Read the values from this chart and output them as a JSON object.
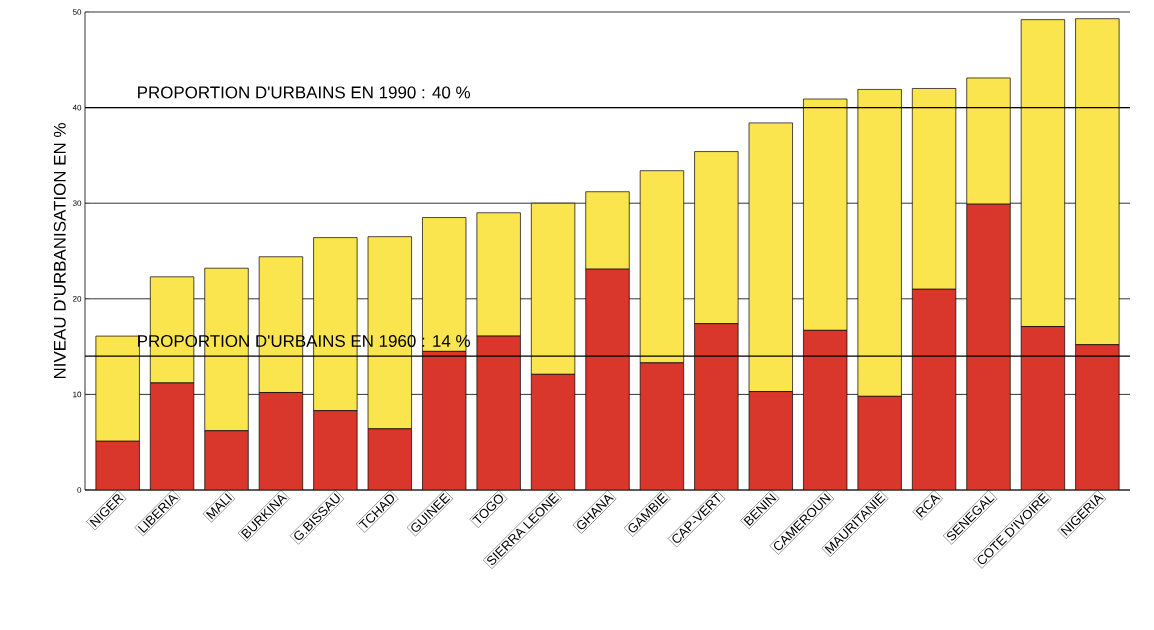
{
  "chart_data": {
    "type": "bar",
    "stacked": true,
    "ylabel": "NIVEAU D'URBANISATION EN      %",
    "categories": [
      "NIGER",
      "LIBERIA",
      "MALI",
      "BURKINA",
      "G.BISSAU",
      "TCHAD",
      "GUINEE",
      "TOGO",
      "SIERRA LEONE",
      "GHANA",
      "GAMBIE",
      "CAP-VERT",
      "BENIN",
      "CAMEROUN",
      "MAURITANIE",
      "RCA",
      "SENEGAL",
      "COTE D'IVOIRE",
      "NIGERIA"
    ],
    "series": [
      {
        "color": "#d9372b",
        "values": [
          5.1,
          11.2,
          6.2,
          10.2,
          8.3,
          6.4,
          14.5,
          16.1,
          12.1,
          23.1,
          13.3,
          17.4,
          10.3,
          16.7,
          9.8,
          21.0,
          29.9,
          17.1,
          15.2
        ]
      },
      {
        "color": "#fbe54e",
        "values": [
          11.0,
          11.1,
          17.0,
          14.2,
          18.1,
          20.1,
          14.0,
          12.9,
          17.9,
          8.1,
          20.1,
          18.0,
          28.1,
          24.2,
          32.1,
          21.0,
          13.2,
          32.1,
          34.1
        ]
      }
    ],
    "ylim": [
      0,
      50
    ],
    "yticks": [
      0,
      10,
      20,
      30,
      40,
      50
    ],
    "grid": "y",
    "ref_lines": [
      {
        "axis": "y",
        "value": 40,
        "label": "PROPORTION D'URBAINS EN 1990 : 40 %"
      },
      {
        "axis": "y",
        "value": 14,
        "label": "PROPORTION D'URBAINS EN 1960 : 14 %"
      }
    ]
  }
}
